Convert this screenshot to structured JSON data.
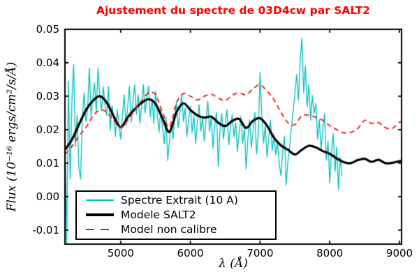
{
  "chart_data": {
    "type": "line",
    "title": "Ajustement du spectre de 03D4cw par SALT2",
    "title_color": "#ff0000",
    "xlabel": "λ (Å)",
    "ylabel": "Flux (10⁻¹⁶ ergs/cm²/s/Å)",
    "xlim": [
      4200,
      9030
    ],
    "ylim": [
      -0.0142,
      0.05
    ],
    "grid": false,
    "background": "#ffffff",
    "x_ticks": {
      "values": [
        5000,
        6000,
        7000,
        8000,
        9000
      ],
      "labels": [
        "5000",
        "6000",
        "7000",
        "8000",
        "9000"
      ]
    },
    "y_ticks": {
      "values": [
        0.05,
        0.04,
        0.03,
        0.02,
        0.01,
        0.0,
        -0.01
      ],
      "labels": [
        "0.05",
        "0.04",
        "0.03",
        "0.02",
        "0.01",
        "0.00",
        "-0.01"
      ]
    },
    "legend": {
      "position": "lower left",
      "entries": [
        "Spectre Extrait (10 A)",
        "Modele SALT2",
        "Model non calibre"
      ]
    },
    "series": [
      {
        "name": "Spectre Extrait (10 A)",
        "style": "solid",
        "color": "#00bfbf",
        "width": 1.3,
        "smooth": false,
        "x_start": 4200,
        "x_step": 25,
        "values": [
          0.021,
          -0.0145,
          0.0345,
          0.0052,
          0.0285,
          0.0395,
          0.015,
          0.0242,
          0.0085,
          0.0052,
          0.0238,
          0.031,
          0.0225,
          0.026,
          0.0385,
          0.024,
          0.0295,
          0.034,
          0.0252,
          0.0385,
          0.0302,
          0.0258,
          0.0328,
          0.0275,
          0.0242,
          0.033,
          0.0198,
          0.0272,
          0.0238,
          0.018,
          0.026,
          0.0215,
          0.0172,
          0.0245,
          0.0305,
          0.021,
          0.0268,
          0.033,
          0.0222,
          0.0282,
          0.0335,
          0.0245,
          0.0305,
          0.022,
          0.027,
          0.0335,
          0.025,
          0.0295,
          0.033,
          0.0238,
          0.0292,
          0.0218,
          0.0315,
          0.0245,
          0.0192,
          0.0262,
          0.0205,
          0.0158,
          0.0238,
          0.0108,
          0.0165,
          0.0225,
          0.0172,
          0.024,
          0.0282,
          0.0205,
          0.0252,
          0.0305,
          0.0225,
          0.0265,
          0.018,
          0.0232,
          0.027,
          0.0192,
          0.0242,
          0.0158,
          0.0222,
          0.0275,
          0.0195,
          0.024,
          0.0165,
          0.023,
          0.0285,
          0.0195,
          0.024,
          0.0145,
          0.0212,
          0.0252,
          0.009,
          0.02,
          0.0248,
          0.0172,
          0.0218,
          0.026,
          0.0155,
          0.0205,
          0.0245,
          0.0178,
          0.0222,
          0.0135,
          0.0192,
          0.024,
          0.016,
          0.0205,
          0.0083,
          0.0172,
          0.023,
          0.0148,
          0.0195,
          0.0252,
          0.0128,
          0.0185,
          0.0372,
          0.024,
          0.016,
          0.0212,
          0.0118,
          0.0178,
          0.0228,
          0.0138,
          0.0185,
          0.0125,
          0.0162,
          0.0098,
          0.0062,
          0.0135,
          0.018,
          0.0035,
          0.0108,
          0.0152,
          0.0205,
          0.0258,
          0.031,
          0.0365,
          0.0288,
          0.0405,
          0.0473,
          0.031,
          0.039,
          0.0268,
          0.0335,
          0.0228,
          0.0302,
          0.0248,
          0.0278,
          0.0172,
          0.023,
          0.0142,
          0.0198,
          0.0248,
          0.0108,
          0.0165,
          0.0042,
          0.0135,
          0.0188,
          0.0075,
          0.0148,
          0.0022,
          0.0118,
          0.0062
        ]
      },
      {
        "name": "Modele SALT2",
        "style": "solid",
        "color": "#000000",
        "width": 3.2,
        "smooth": true,
        "x_start": 4200,
        "x_step": 100,
        "values": [
          0.014,
          0.017,
          0.0215,
          0.0258,
          0.0286,
          0.03,
          0.0281,
          0.024,
          0.0207,
          0.0237,
          0.0261,
          0.028,
          0.0291,
          0.0277,
          0.0234,
          0.0193,
          0.0252,
          0.0279,
          0.0259,
          0.0243,
          0.0236,
          0.0239,
          0.0221,
          0.0211,
          0.0226,
          0.0232,
          0.0205,
          0.0227,
          0.0234,
          0.0212,
          0.0176,
          0.0153,
          0.014,
          0.0126,
          0.014,
          0.0152,
          0.0147,
          0.0136,
          0.0128,
          0.0114,
          0.0103,
          0.01,
          0.0109,
          0.0113,
          0.0104,
          0.011,
          0.01,
          0.0101,
          0.0106,
          0.0108
        ]
      },
      {
        "name": "Model non calibre",
        "style": "dashed",
        "color": "#f21414",
        "width": 1.8,
        "smooth": true,
        "x_start": 4200,
        "x_step": 100,
        "values": [
          0.0126,
          0.015,
          0.0181,
          0.0206,
          0.024,
          0.0259,
          0.0252,
          0.0228,
          0.0206,
          0.0228,
          0.0258,
          0.0287,
          0.031,
          0.0305,
          0.0252,
          0.0207,
          0.028,
          0.0308,
          0.03,
          0.0289,
          0.03,
          0.0306,
          0.0295,
          0.0287,
          0.0303,
          0.031,
          0.0304,
          0.0322,
          0.0334,
          0.0315,
          0.0289,
          0.0252,
          0.0221,
          0.0215,
          0.0242,
          0.0243,
          0.0237,
          0.0228,
          0.0212,
          0.02,
          0.0191,
          0.0192,
          0.0203,
          0.0228,
          0.0219,
          0.0221,
          0.0206,
          0.0204,
          0.0222,
          0.0226
        ]
      }
    ]
  }
}
